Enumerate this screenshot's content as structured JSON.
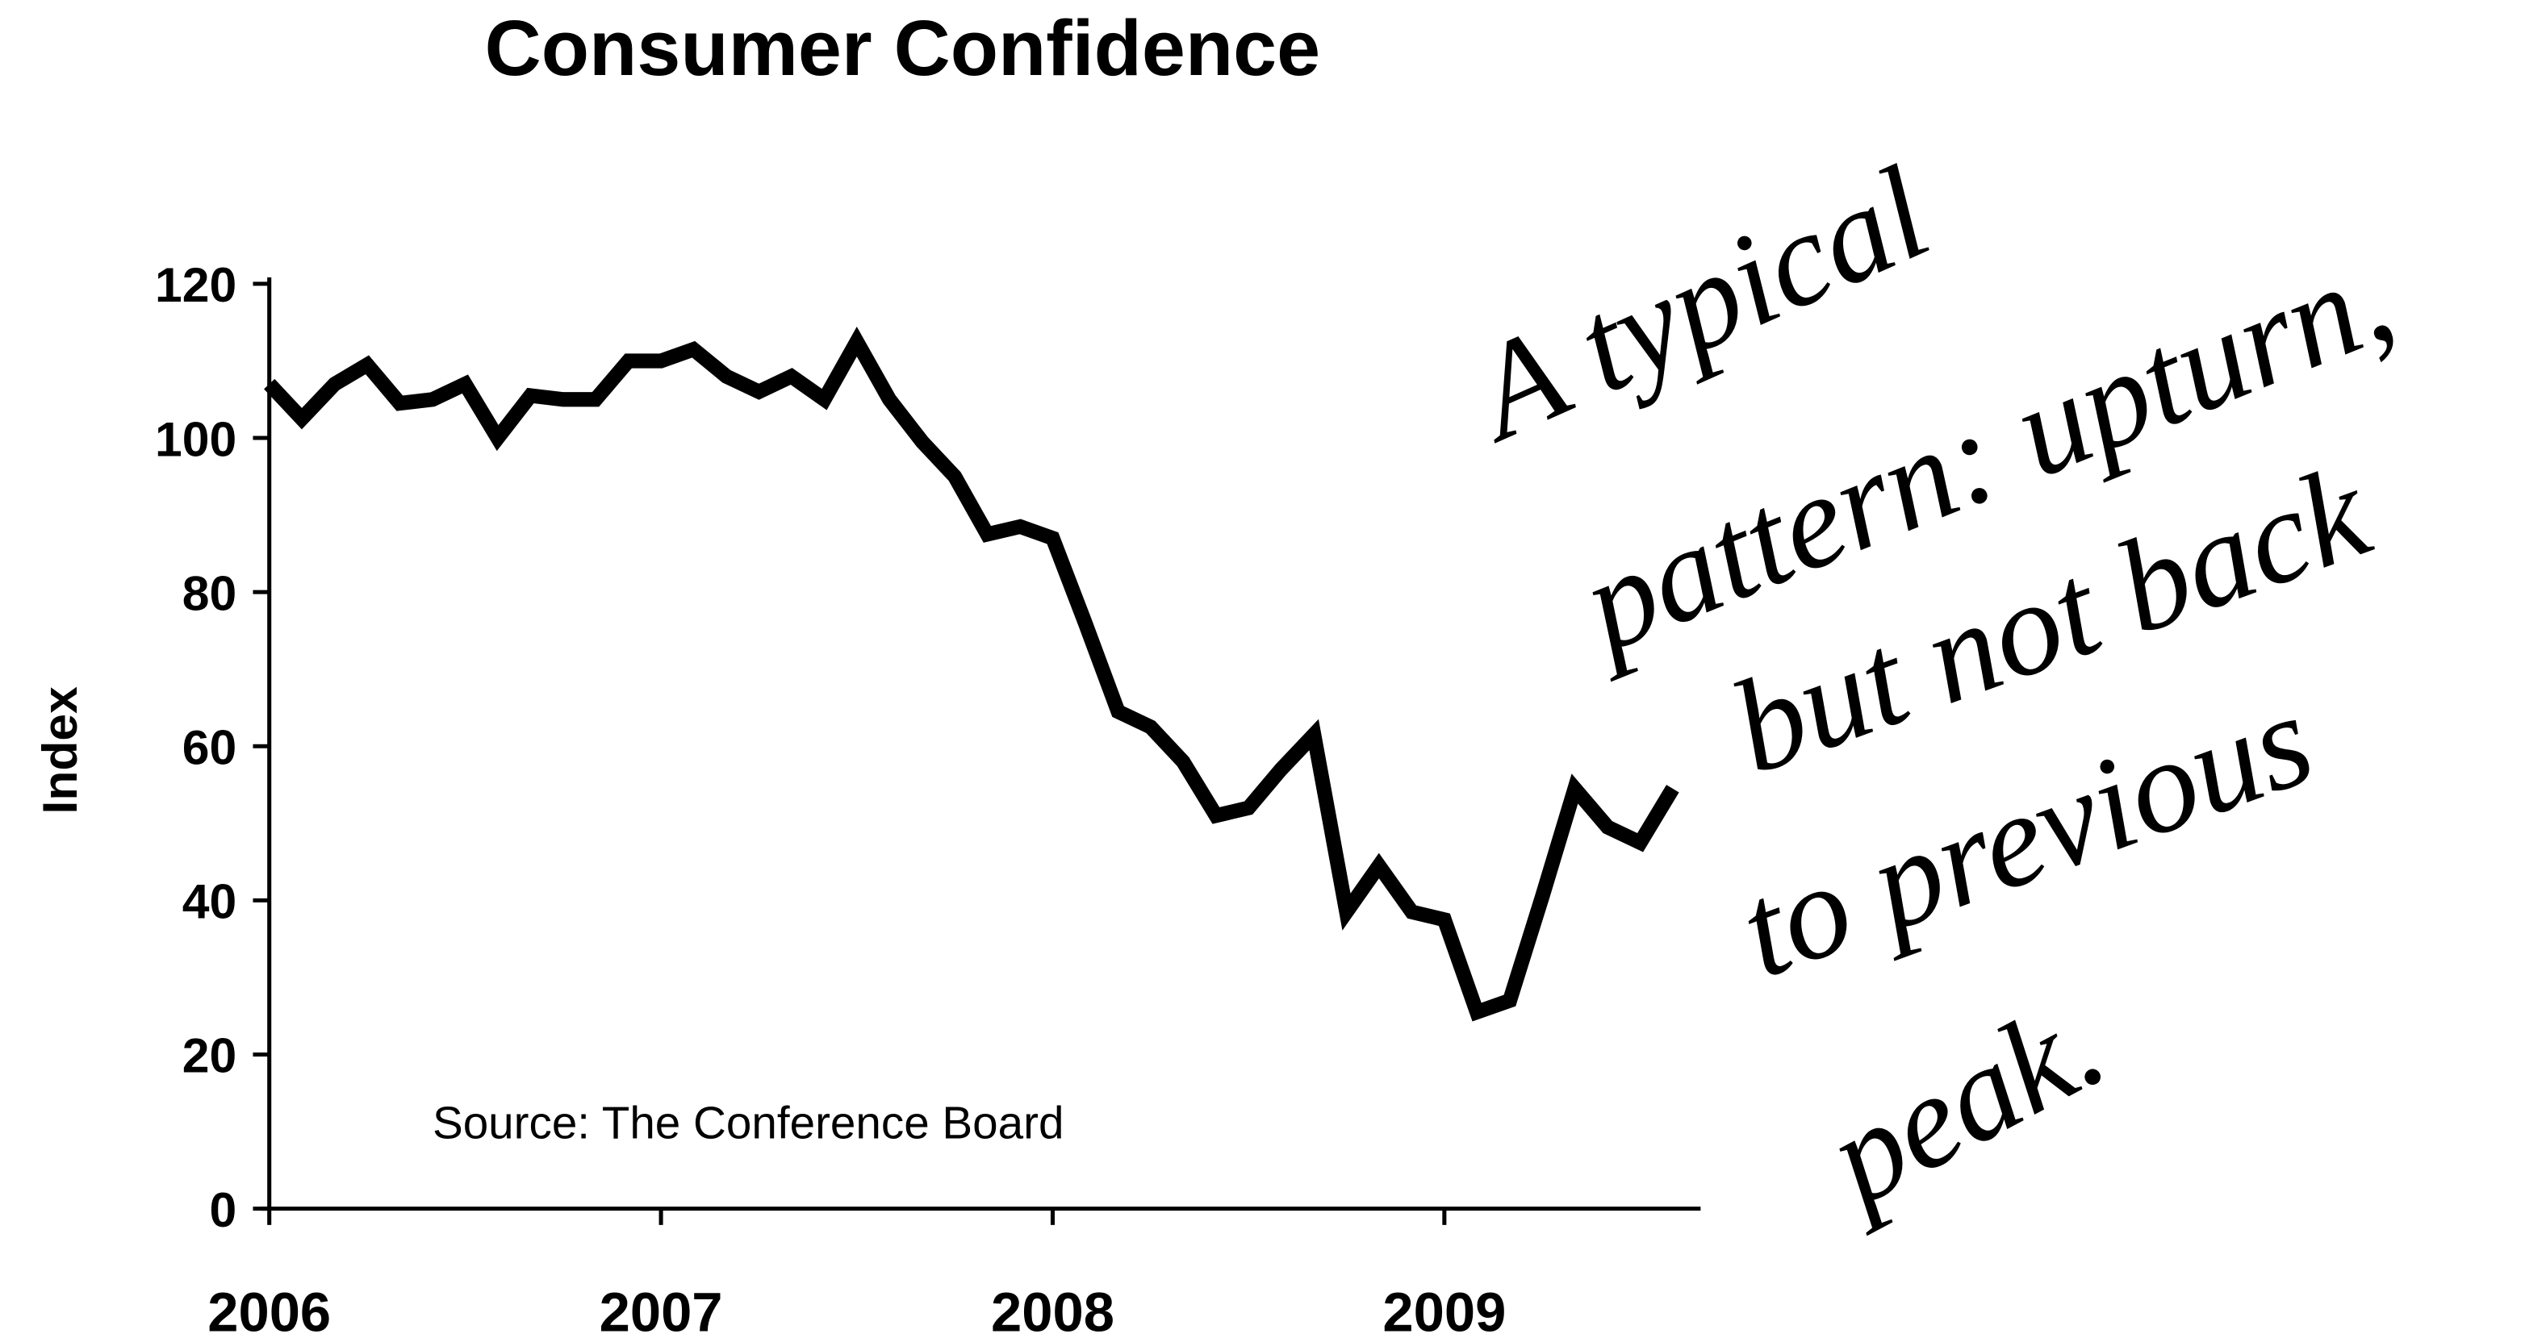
{
  "chart_data": {
    "type": "line",
    "title": "Consumer Confidence",
    "ylabel": "Index",
    "source": "Source:  The Conference Board",
    "annotation": [
      "A typical",
      "pattern: upturn,",
      "but not back",
      "to previous",
      "peak."
    ],
    "x": [
      2006,
      2006.083,
      2006.167,
      2006.25,
      2006.333,
      2006.417,
      2006.5,
      2006.583,
      2006.667,
      2006.75,
      2006.833,
      2006.917,
      2007,
      2007.083,
      2007.167,
      2007.25,
      2007.333,
      2007.417,
      2007.5,
      2007.583,
      2007.667,
      2007.75,
      2007.833,
      2007.917,
      2008,
      2008.083,
      2008.167,
      2008.25,
      2008.333,
      2008.417,
      2008.5,
      2008.583,
      2008.667,
      2008.75,
      2008.833,
      2008.917,
      2009,
      2009.083,
      2009.167,
      2009.25,
      2009.333,
      2009.417,
      2009.5,
      2009.583
    ],
    "series": [
      {
        "name": "Consumer Confidence",
        "color": "#000000",
        "values": [
          107,
          102.5,
          107,
          109.5,
          104.5,
          105,
          107,
          100,
          105.5,
          105,
          105,
          110,
          110,
          111.5,
          108,
          106,
          108,
          105,
          112.5,
          105,
          99.5,
          95,
          87.5,
          88.5,
          87,
          76,
          64.5,
          62.5,
          58,
          51,
          52,
          57,
          61.5,
          38.5,
          44.5,
          38.5,
          37.5,
          25.5,
          27,
          40.5,
          54.5,
          49.5,
          47.5,
          54.5
        ]
      }
    ],
    "xlim": [
      2006,
      2009.65
    ],
    "xticks": [
      2006,
      2007,
      2008,
      2009
    ],
    "ylim": [
      0,
      120
    ],
    "yticks": [
      0,
      20,
      40,
      60,
      80,
      100,
      120
    ],
    "grid": false
  }
}
